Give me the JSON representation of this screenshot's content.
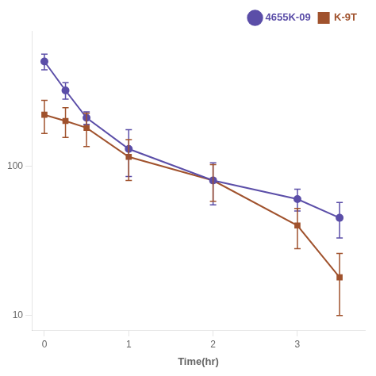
{
  "chart_data": {
    "type": "line",
    "x_label": "Time(hr)",
    "x": [
      0,
      0.25,
      0.5,
      1,
      2,
      3,
      3.5
    ],
    "series": [
      {
        "name": "4655K-09",
        "color": "#5B4EA8",
        "marker": "circle",
        "values": [
          500,
          320,
          210,
          130,
          80,
          60,
          45
        ],
        "error": [
          60,
          40,
          20,
          45,
          25,
          10,
          12
        ]
      },
      {
        "name": "K-9T",
        "color": "#A0522D",
        "marker": "square",
        "values": [
          220,
          200,
          180,
          115,
          80,
          40,
          18
        ],
        "error": [
          55,
          45,
          45,
          35,
          22,
          12,
          8
        ]
      }
    ],
    "xlim": [
      -0.15,
      3.8
    ],
    "xticks": [
      0,
      1,
      2,
      3
    ],
    "ylim": [
      8,
      800
    ],
    "yticks": [
      10,
      100
    ],
    "log": "y",
    "grid": false,
    "legend": "upper right"
  }
}
